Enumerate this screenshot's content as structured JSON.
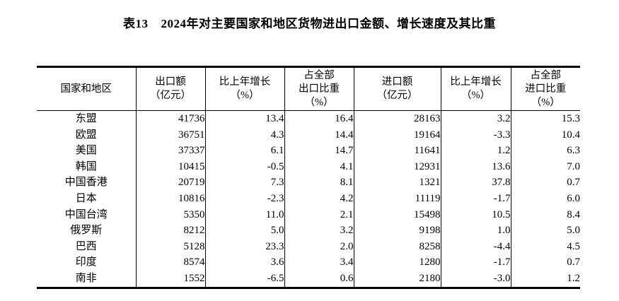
{
  "page": {
    "background": "#ffffff",
    "text_color": "#000000"
  },
  "title": {
    "prefix": "表13",
    "main": "2024年对主要国家和地区货物进出口金额、增长速度及其比重"
  },
  "table": {
    "columns": [
      {
        "key": "region",
        "label_lines": [
          "国家和地区"
        ]
      },
      {
        "key": "export_value",
        "label_lines": [
          "出口额",
          "（亿元）"
        ]
      },
      {
        "key": "export_growth",
        "label_lines": [
          "比上年增长",
          "（%）"
        ]
      },
      {
        "key": "export_share",
        "label_lines": [
          "占全部",
          "出口比重",
          "（%）"
        ]
      },
      {
        "key": "import_value",
        "label_lines": [
          "进口额",
          "（亿元）"
        ]
      },
      {
        "key": "import_growth",
        "label_lines": [
          "比上年增长",
          "（%）"
        ]
      },
      {
        "key": "import_share",
        "label_lines": [
          "占全部",
          "进口比重",
          "（%）"
        ]
      }
    ],
    "rows": [
      {
        "region": "东盟",
        "export_value": "41736",
        "export_growth": "13.4",
        "export_share": "16.4",
        "import_value": "28163",
        "import_growth": "3.2",
        "import_share": "15.3"
      },
      {
        "region": "欧盟",
        "export_value": "36751",
        "export_growth": "4.3",
        "export_share": "14.4",
        "import_value": "19164",
        "import_growth": "-3.3",
        "import_share": "10.4"
      },
      {
        "region": "美国",
        "export_value": "37337",
        "export_growth": "6.1",
        "export_share": "14.7",
        "import_value": "11641",
        "import_growth": "1.2",
        "import_share": "6.3"
      },
      {
        "region": "韩国",
        "export_value": "10415",
        "export_growth": "-0.5",
        "export_share": "4.1",
        "import_value": "12931",
        "import_growth": "13.6",
        "import_share": "7.0"
      },
      {
        "region": "中国香港",
        "export_value": "20719",
        "export_growth": "7.3",
        "export_share": "8.1",
        "import_value": "1321",
        "import_growth": "37.8",
        "import_share": "0.7"
      },
      {
        "region": "日本",
        "export_value": "10816",
        "export_growth": "-2.3",
        "export_share": "4.2",
        "import_value": "11119",
        "import_growth": "-1.7",
        "import_share": "6.0"
      },
      {
        "region": "中国台湾",
        "export_value": "5350",
        "export_growth": "11.0",
        "export_share": "2.1",
        "import_value": "15498",
        "import_growth": "10.5",
        "import_share": "8.4"
      },
      {
        "region": "俄罗斯",
        "export_value": "8212",
        "export_growth": "5.0",
        "export_share": "3.2",
        "import_value": "9198",
        "import_growth": "1.0",
        "import_share": "5.0"
      },
      {
        "region": "巴西",
        "export_value": "5128",
        "export_growth": "23.3",
        "export_share": "2.0",
        "import_value": "8258",
        "import_growth": "-4.4",
        "import_share": "4.5"
      },
      {
        "region": "印度",
        "export_value": "8574",
        "export_growth": "3.6",
        "export_share": "3.4",
        "import_value": "1280",
        "import_growth": "-1.7",
        "import_share": "0.7"
      },
      {
        "region": "南非",
        "export_value": "1552",
        "export_growth": "-6.5",
        "export_share": "0.6",
        "import_value": "2180",
        "import_growth": "-3.0",
        "import_share": "1.2"
      }
    ]
  }
}
